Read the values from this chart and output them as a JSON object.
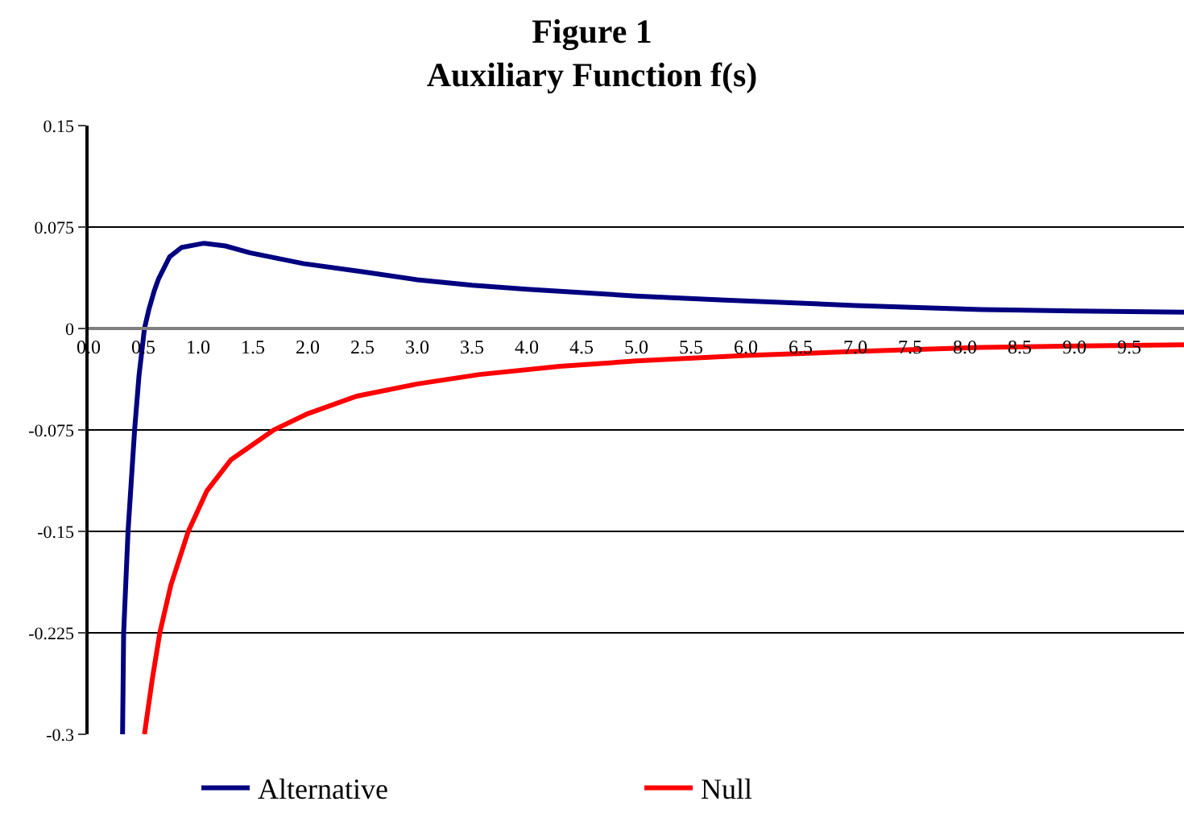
{
  "chart_data": {
    "type": "line",
    "title": "Figure 1\nAuxiliary Function f(s)",
    "xlim": [
      0,
      10.0
    ],
    "xticks": [
      {
        "value": 0,
        "label": "0.0"
      },
      {
        "value": 0.5,
        "label": "0.5"
      },
      {
        "value": 1,
        "label": "1.0"
      },
      {
        "value": 1.5,
        "label": "1.5"
      },
      {
        "value": 2,
        "label": "2.0"
      },
      {
        "value": 2.5,
        "label": "2.5"
      },
      {
        "value": 3,
        "label": "3.0"
      },
      {
        "value": 3.5,
        "label": "3.5"
      },
      {
        "value": 4,
        "label": "4.0"
      },
      {
        "value": 4.5,
        "label": "4.5"
      },
      {
        "value": 5,
        "label": "5.0"
      },
      {
        "value": 5.5,
        "label": "5.5"
      },
      {
        "value": 6,
        "label": "6.0"
      },
      {
        "value": 6.5,
        "label": "6.5"
      },
      {
        "value": 7,
        "label": "7.0"
      },
      {
        "value": 7.5,
        "label": "7.5"
      },
      {
        "value": 8,
        "label": "8.0"
      },
      {
        "value": 8.5,
        "label": "8.5"
      },
      {
        "value": 9,
        "label": "9.0"
      },
      {
        "value": 9.5,
        "label": "9.5"
      }
    ],
    "ylim": [
      -0.3,
      0.15
    ],
    "yticks": [
      0.15,
      0.075,
      0,
      -0.075,
      -0.15,
      -0.225,
      -0.3
    ],
    "grid": "y",
    "legend": "bottom",
    "marker": "none",
    "line_style": "solid",
    "series": [
      {
        "name": "Alternative",
        "color": "#000080",
        "x": [
          0.31,
          0.32,
          0.36,
          0.42,
          0.46,
          0.51,
          0.55,
          0.6,
          0.64,
          0.74,
          0.85,
          1.05,
          1.25,
          1.47,
          1.96,
          2.5,
          3.0,
          3.5,
          4.0,
          5.0,
          5.81,
          7.0,
          8.15,
          9.0,
          10.0
        ],
        "values": [
          -0.3,
          -0.225,
          -0.15,
          -0.075,
          -0.035,
          0,
          0.014,
          0.028,
          0.037,
          0.053,
          0.06,
          0.063,
          0.061,
          0.056,
          0.048,
          0.042,
          0.036,
          0.032,
          0.029,
          0.024,
          0.021,
          0.017,
          0.014,
          0.013,
          0.012
        ]
      },
      {
        "name": "Null",
        "color": "#ff0000",
        "x": [
          0.51,
          0.58,
          0.65,
          0.75,
          0.91,
          1.08,
          1.3,
          1.69,
          2.0,
          2.45,
          3.0,
          3.57,
          4.3,
          5.0,
          6.0,
          7.0,
          8.15,
          9.0,
          10.0
        ],
        "values": [
          -0.3,
          -0.26,
          -0.225,
          -0.19,
          -0.15,
          -0.12,
          -0.097,
          -0.075,
          -0.063,
          -0.05,
          -0.041,
          -0.034,
          -0.028,
          -0.024,
          -0.02,
          -0.017,
          -0.014,
          -0.013,
          -0.012
        ]
      }
    ]
  }
}
